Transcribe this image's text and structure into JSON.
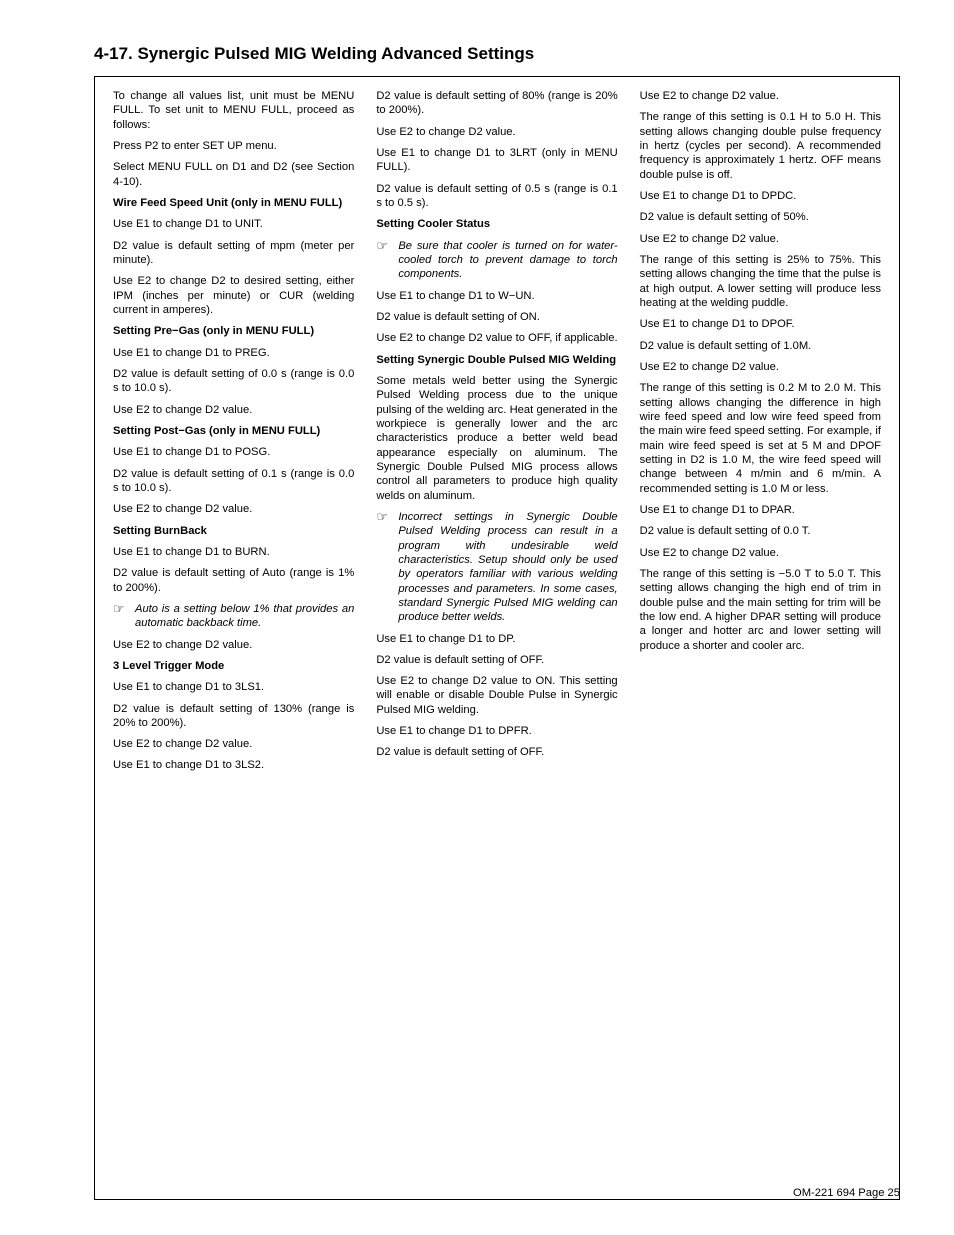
{
  "title": "4-17. Synergic Pulsed MIG Welding Advanced Settings",
  "footer": "OM-221 694 Page 25",
  "note_icon": "☞",
  "paras": [
    {
      "t": "p",
      "v": "To change all values list, unit must be MENU FULL. To set unit to MENU FULL, proceed as follows:"
    },
    {
      "t": "p",
      "v": "Press P2 to enter SET UP menu."
    },
    {
      "t": "p",
      "v": "Select MENU FULL on D1 and D2 (see Section 4-10)."
    },
    {
      "t": "b",
      "v": "Wire Feed Speed Unit (only in MENU FULL)"
    },
    {
      "t": "p",
      "v": "Use E1 to change D1 to UNIT."
    },
    {
      "t": "p",
      "v": "D2 value is default setting of mpm (meter per minute)."
    },
    {
      "t": "p",
      "v": "Use E2 to change D2 to desired setting, either IPM (inches per minute) or CUR (welding current in amperes)."
    },
    {
      "t": "b",
      "v": "Setting Pre−Gas (only in MENU FULL)"
    },
    {
      "t": "p",
      "v": "Use E1 to change D1 to PREG."
    },
    {
      "t": "p",
      "v": "D2 value is default setting of 0.0 s (range is 0.0 s to 10.0 s)."
    },
    {
      "t": "p",
      "v": "Use E2 to change D2 value."
    },
    {
      "t": "b",
      "v": "Setting Post−Gas (only in MENU FULL)"
    },
    {
      "t": "p",
      "v": "Use E1 to change D1 to POSG."
    },
    {
      "t": "p",
      "v": "D2 value is default setting of 0.1 s (range is 0.0 s to 10.0 s)."
    },
    {
      "t": "p",
      "v": "Use E2 to change D2 value."
    },
    {
      "t": "b",
      "v": "Setting BurnBack"
    },
    {
      "t": "p",
      "v": "Use E1 to change D1 to BURN."
    },
    {
      "t": "p",
      "v": "D2 value is default setting of Auto (range is 1% to 200%)."
    },
    {
      "t": "n",
      "v": "Auto is a setting below 1% that provides an automatic backback time."
    },
    {
      "t": "p",
      "v": "Use E2 to change D2 value."
    },
    {
      "t": "b",
      "v": "3 Level Trigger Mode"
    },
    {
      "t": "p",
      "v": "Use E1 to change D1 to 3LS1."
    },
    {
      "t": "p",
      "v": "D2 value is default setting of 130% (range is 20% to 200%)."
    },
    {
      "t": "p",
      "v": "Use E2 to change D2 value."
    },
    {
      "t": "p",
      "v": "Use E1 to change D1 to 3LS2."
    },
    {
      "t": "p",
      "v": "D2 value is default setting of 80% (range is 20% to 200%)."
    },
    {
      "t": "p",
      "v": "Use E2 to change D2 value."
    },
    {
      "t": "p",
      "v": "Use E1 to change D1 to 3LRT (only in MENU FULL)."
    },
    {
      "t": "p",
      "v": "D2 value is default setting of 0.5 s (range is 0.1 s to 0.5 s)."
    },
    {
      "t": "b",
      "v": "Setting Cooler Status"
    },
    {
      "t": "n",
      "v": "Be sure that cooler is turned on for water-cooled torch to prevent damage to torch components."
    },
    {
      "t": "p",
      "v": "Use E1 to change D1 to W−UN."
    },
    {
      "t": "p",
      "v": "D2 value is default setting of ON."
    },
    {
      "t": "p",
      "v": "Use E2 to change D2 value to OFF, if applicable."
    },
    {
      "t": "b",
      "v": "Setting Synergic Double Pulsed MIG Welding"
    },
    {
      "t": "p",
      "v": "Some metals weld better using the Synergic Pulsed Welding process due to the unique pulsing of the welding arc. Heat generated in the workpiece is generally lower and the arc characteristics produce a better weld bead appearance especially on aluminum. The Synergic Double Pulsed MIG process allows control all parameters to produce high quality welds on aluminum."
    },
    {
      "t": "n",
      "v": "Incorrect settings in Synergic Double Pulsed Welding process can result in a program with undesirable weld characteristics. Setup should only be used by operators familiar with various welding processes and parameters. In some cases, standard Synergic Pulsed MIG welding can produce better welds."
    },
    {
      "t": "p",
      "v": "Use E1 to change D1 to DP."
    },
    {
      "t": "p",
      "v": "D2 value is default setting of OFF."
    },
    {
      "t": "p",
      "v": "Use E2 to change D2 value to ON. This setting will enable or disable Double Pulse in Synergic Pulsed MIG welding."
    },
    {
      "t": "p",
      "v": "Use E1 to change D1 to DPFR."
    },
    {
      "t": "p",
      "v": "D2 value is default setting of OFF."
    },
    {
      "t": "p",
      "v": "Use E2 to change D2 value."
    },
    {
      "t": "p",
      "v": "The range of this setting is 0.1 H to 5.0 H. This setting allows changing double pulse frequency in hertz (cycles per second). A recommended frequency is approximately 1 hertz. OFF means double pulse is off."
    },
    {
      "t": "p",
      "v": "Use E1 to change D1 to DPDC."
    },
    {
      "t": "p",
      "v": "D2 value is default setting of 50%."
    },
    {
      "t": "p",
      "v": "Use E2 to change D2 value."
    },
    {
      "t": "p",
      "v": "The range of this setting is 25% to 75%. This setting allows changing the time that the pulse is at high output. A lower setting will produce less heating at the welding puddle."
    },
    {
      "t": "p",
      "v": "Use E1 to change D1 to DPOF."
    },
    {
      "t": "p",
      "v": "D2 value is default setting of 1.0M."
    },
    {
      "t": "p",
      "v": "Use E2 to change D2 value."
    },
    {
      "t": "p",
      "v": "The range of this setting is 0.2 M to 2.0 M. This setting allows changing the difference in high wire feed speed and low wire feed speed from the main wire feed speed setting. For example, if main wire feed speed is set at 5 M and DPOF setting in D2 is 1.0 M, the wire feed speed will change between 4 m/min and 6 m/min. A recommended setting is 1.0 M or less."
    },
    {
      "t": "p",
      "v": "Use E1 to change D1 to DPAR."
    },
    {
      "t": "p",
      "v": "D2 value is default setting of 0.0 T."
    },
    {
      "t": "p",
      "v": "Use E2 to change D2 value."
    },
    {
      "t": "p",
      "v": "The range of this setting is −5.0 T to 5.0 T. This setting allows changing the high end of trim in double pulse and the main setting for trim will be the low end. A higher DPAR setting will produce a longer and hotter arc and lower setting will produce a shorter and cooler arc."
    }
  ]
}
